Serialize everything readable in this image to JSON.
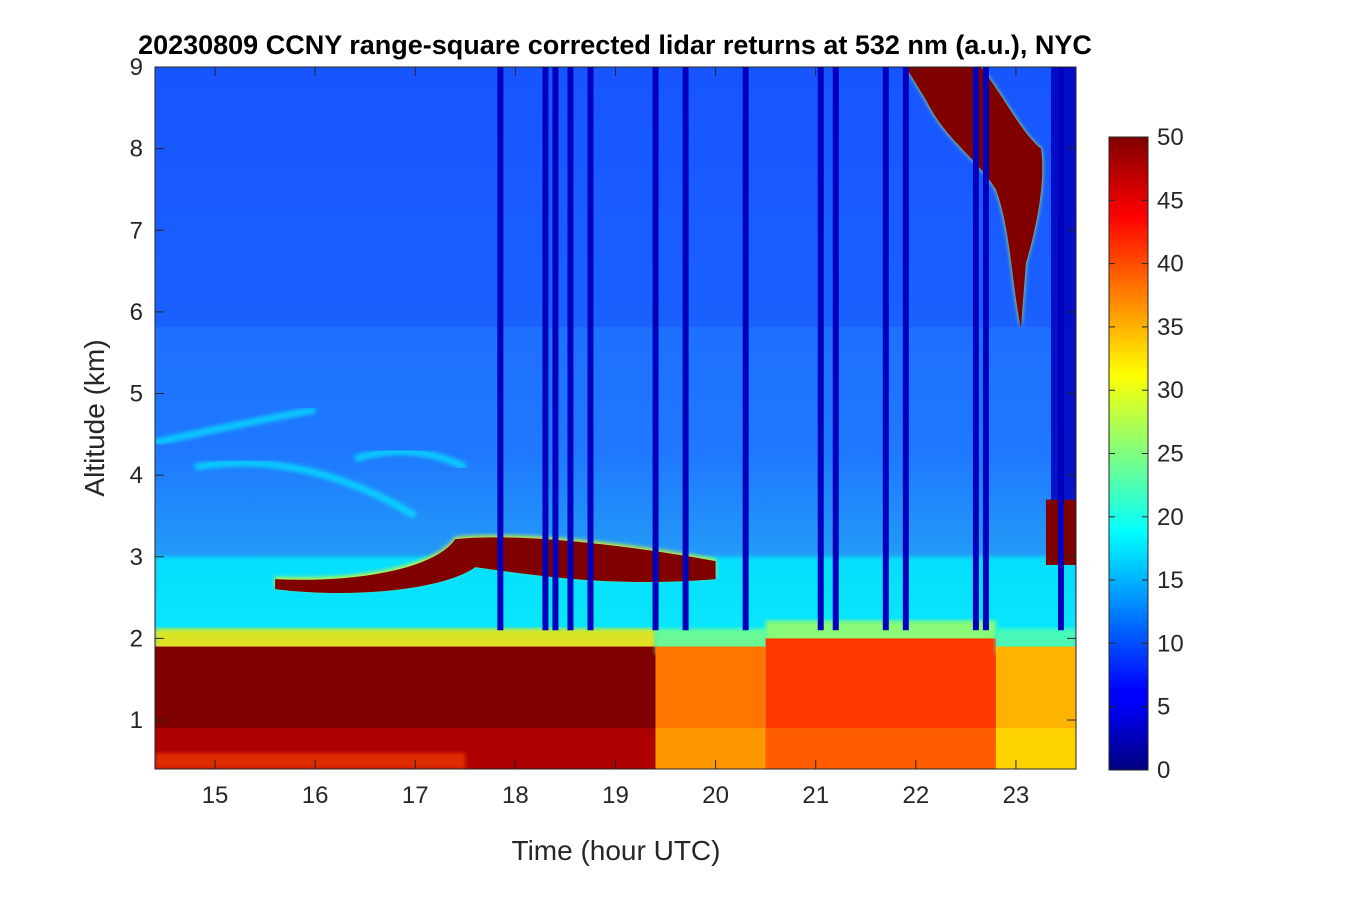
{
  "chart_data": {
    "type": "heatmap",
    "title": "20230809 CCNY range-square corrected lidar returns at 532 nm (a.u.), NYC",
    "xlabel": "Time (hour UTC)",
    "ylabel": "Altitude (km)",
    "xlim": [
      14.4,
      23.6
    ],
    "ylim": [
      0.4,
      9
    ],
    "xticks": [
      15,
      16,
      17,
      18,
      19,
      20,
      21,
      22,
      23
    ],
    "yticks": [
      1,
      2,
      3,
      4,
      5,
      6,
      7,
      8,
      9
    ],
    "colorbar": {
      "min": 0,
      "max": 50,
      "ticks": [
        0,
        5,
        10,
        15,
        20,
        25,
        30,
        35,
        40,
        45,
        50
      ],
      "colormap": "jet"
    },
    "features": {
      "boundary_layer": [
        {
          "x": [
            14.4,
            19.4
          ],
          "y_top_km": 1.9,
          "value": 50
        },
        {
          "x": [
            19.4,
            20.5
          ],
          "y_top_km": 1.9,
          "value": 38
        },
        {
          "x": [
            20.5,
            22.8
          ],
          "y_top_km": 2.0,
          "value": 41
        },
        {
          "x": [
            22.8,
            23.6
          ],
          "y_top_km": 1.9,
          "value": 35
        }
      ],
      "aerosol_layer": {
        "x": [
          15.6,
          20.0
        ],
        "altitude_km": 2.8,
        "value": 50
      },
      "high_cloud": {
        "x": [
          21.9,
          23.4
        ],
        "altitude_km": [
          5.8,
          9.0
        ],
        "value": 50
      },
      "low_cloud": {
        "x": [
          23.3,
          23.6
        ],
        "altitude_km": [
          2.9,
          3.7
        ],
        "value": 50
      },
      "data_gaps": [
        17.85,
        18.3,
        18.4,
        18.55,
        18.75,
        19.4,
        19.7,
        20.3,
        21.05,
        21.2,
        21.7,
        21.9,
        22.6,
        22.7,
        23.45
      ]
    }
  }
}
